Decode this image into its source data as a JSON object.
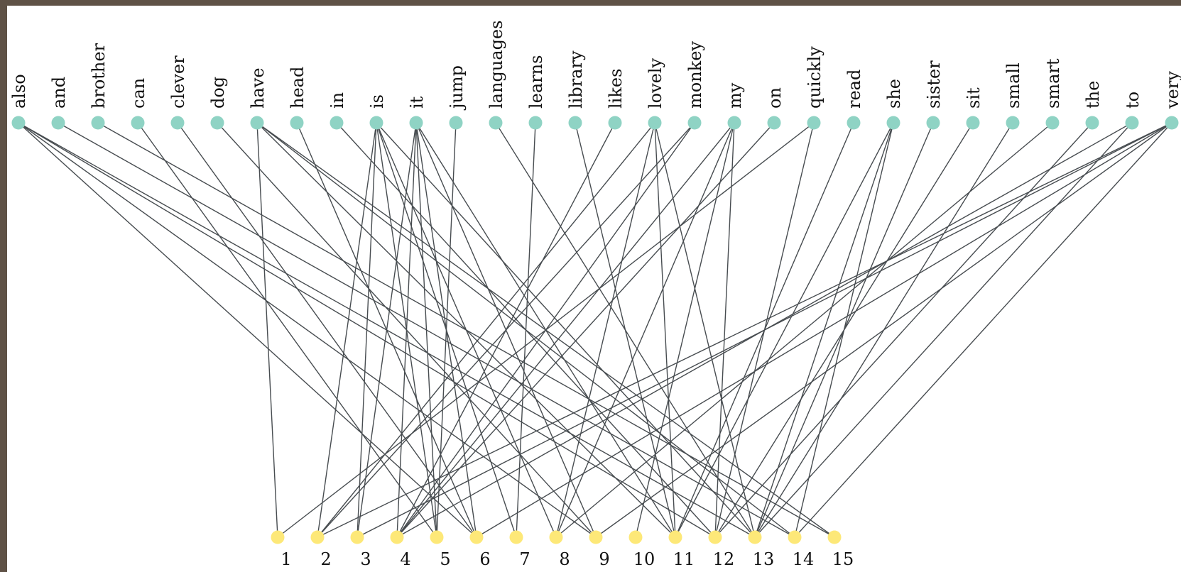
{
  "colors": {
    "word_node": "#8fd3c4",
    "document_node": "#fde878",
    "edge": "#474c50",
    "background": "#ffffff",
    "outer_border": "#5f5246"
  },
  "diagram": {
    "type": "bipartite-graph",
    "words": [
      "also",
      "and",
      "brother",
      "can",
      "clever",
      "dog",
      "have",
      "head",
      "in",
      "is",
      "it",
      "jump",
      "languages",
      "learns",
      "library",
      "likes",
      "lovely",
      "monkey",
      "my",
      "on",
      "quickly",
      "read",
      "she",
      "sister",
      "sit",
      "small",
      "smart",
      "the",
      "to",
      "very"
    ],
    "documents": [
      "1",
      "2",
      "3",
      "4",
      "5",
      "6",
      "7",
      "8",
      "9",
      "10",
      "11",
      "12",
      "13",
      "14",
      "15"
    ],
    "edges": [
      [
        "also",
        "6"
      ],
      [
        "also",
        "9"
      ],
      [
        "also",
        "12"
      ],
      [
        "also",
        "13"
      ],
      [
        "and",
        "14"
      ],
      [
        "brother",
        "15"
      ],
      [
        "can",
        "5"
      ],
      [
        "clever",
        "6"
      ],
      [
        "dog",
        "9"
      ],
      [
        "have",
        "1"
      ],
      [
        "have",
        "11"
      ],
      [
        "have",
        "14"
      ],
      [
        "have",
        "15"
      ],
      [
        "head",
        "6"
      ],
      [
        "in",
        "12"
      ],
      [
        "is",
        "2"
      ],
      [
        "is",
        "3"
      ],
      [
        "is",
        "5"
      ],
      [
        "is",
        "7"
      ],
      [
        "is",
        "8"
      ],
      [
        "is",
        "13"
      ],
      [
        "it",
        "3"
      ],
      [
        "it",
        "4"
      ],
      [
        "it",
        "5"
      ],
      [
        "it",
        "6"
      ],
      [
        "it",
        "9"
      ],
      [
        "it",
        "11"
      ],
      [
        "jump",
        "5"
      ],
      [
        "languages",
        "13"
      ],
      [
        "learns",
        "7"
      ],
      [
        "library",
        "11"
      ],
      [
        "likes",
        "4"
      ],
      [
        "lovely",
        "2"
      ],
      [
        "lovely",
        "8"
      ],
      [
        "lovely",
        "11"
      ],
      [
        "lovely",
        "13"
      ],
      [
        "monkey",
        "2"
      ],
      [
        "monkey",
        "4"
      ],
      [
        "my",
        "4"
      ],
      [
        "my",
        "8"
      ],
      [
        "my",
        "10"
      ],
      [
        "my",
        "12"
      ],
      [
        "on",
        "4"
      ],
      [
        "quickly",
        "1"
      ],
      [
        "quickly",
        "12"
      ],
      [
        "read",
        "11"
      ],
      [
        "she",
        "11"
      ],
      [
        "she",
        "13"
      ],
      [
        "she",
        "14"
      ],
      [
        "sister",
        "13"
      ],
      [
        "sit",
        "12"
      ],
      [
        "small",
        "13"
      ],
      [
        "smart",
        "8"
      ],
      [
        "the",
        "12"
      ],
      [
        "to",
        "4"
      ],
      [
        "to",
        "13"
      ],
      [
        "very",
        "2"
      ],
      [
        "very",
        "3"
      ],
      [
        "very",
        "6"
      ],
      [
        "very",
        "9"
      ],
      [
        "very",
        "14"
      ]
    ]
  }
}
